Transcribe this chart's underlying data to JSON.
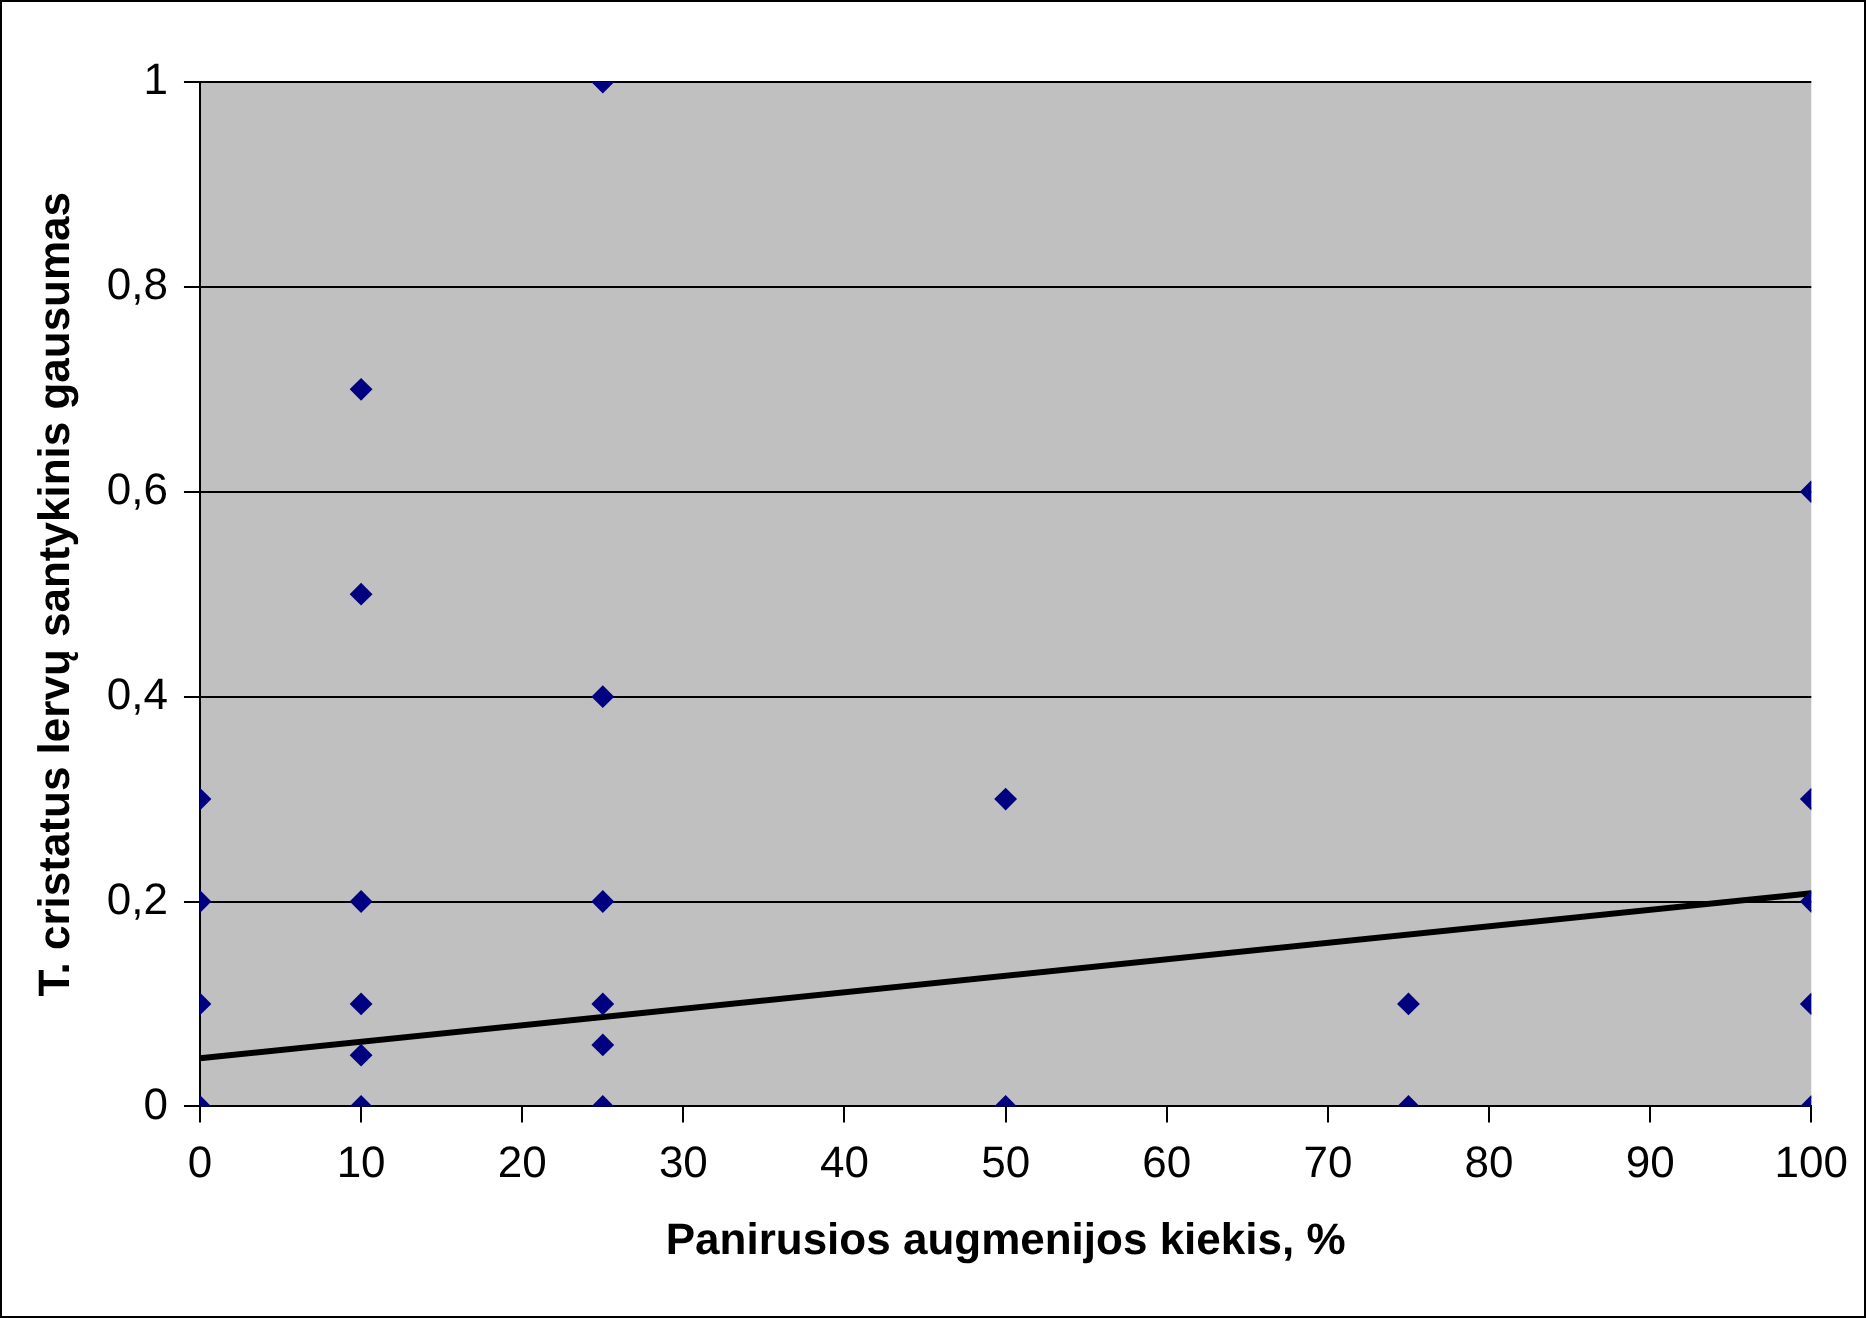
{
  "chart_data": {
    "type": "scatter",
    "xlabel": "Panirusios augmenijos kiekis, %",
    "ylabel": "T. cristatus lervų santykinis gausumas",
    "grid": "y",
    "xlim": [
      0,
      100
    ],
    "xticks": [
      0,
      10,
      20,
      30,
      40,
      50,
      60,
      70,
      80,
      90,
      100
    ],
    "ylim": [
      0,
      1
    ],
    "yticks": [
      0,
      {
        "value": 0.2,
        "label": "0,2"
      },
      {
        "value": 0.4,
        "label": "0,4"
      },
      {
        "value": 0.6,
        "label": "0,6"
      },
      {
        "value": 0.8,
        "label": "0,8"
      },
      1
    ],
    "series": [
      {
        "color": "#000080",
        "marker": "diamond",
        "x": [
          0,
          0,
          0,
          0,
          10,
          10,
          10,
          10,
          10,
          10,
          25,
          25,
          25,
          25,
          25,
          25,
          50,
          50,
          75,
          75,
          100,
          100,
          100,
          100,
          100
        ],
        "values": [
          0,
          0.1,
          0.2,
          0.3,
          0,
          0.05,
          0.1,
          0.2,
          0.5,
          0.7,
          0,
          0.06,
          0.1,
          0.2,
          0.4,
          1,
          0,
          0.3,
          0,
          0.1,
          0,
          0.1,
          0.2,
          0.3,
          0.6
        ]
      },
      {
        "type": "line",
        "marker": "none",
        "color": "#000000",
        "x": [
          0,
          100
        ],
        "values": [
          0.047,
          0.208
        ]
      }
    ]
  }
}
